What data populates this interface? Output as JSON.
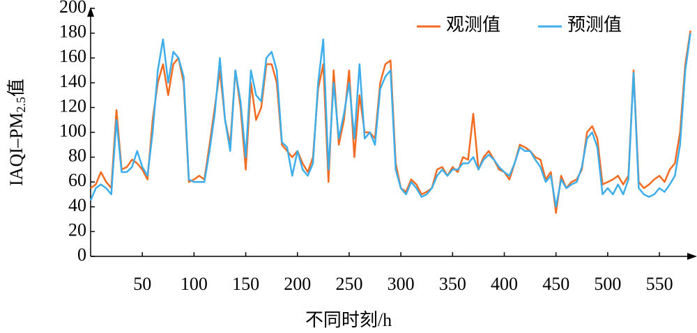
{
  "chart_data": {
    "type": "line",
    "x_label": "不同时刻/h",
    "y_label": {
      "prefix": "IAQI–PM",
      "subscript": "2.5",
      "suffix": "值"
    },
    "x": [
      0,
      5,
      10,
      15,
      20,
      25,
      30,
      35,
      40,
      45,
      50,
      55,
      60,
      65,
      70,
      75,
      80,
      85,
      90,
      95,
      100,
      105,
      110,
      115,
      120,
      125,
      130,
      135,
      140,
      145,
      150,
      155,
      160,
      165,
      170,
      175,
      180,
      185,
      190,
      195,
      200,
      205,
      210,
      215,
      220,
      225,
      230,
      235,
      240,
      245,
      250,
      255,
      260,
      265,
      270,
      275,
      280,
      285,
      290,
      295,
      300,
      305,
      310,
      315,
      320,
      325,
      330,
      335,
      340,
      345,
      350,
      355,
      360,
      365,
      370,
      375,
      380,
      385,
      390,
      395,
      400,
      405,
      410,
      415,
      420,
      425,
      430,
      435,
      440,
      445,
      450,
      455,
      460,
      465,
      470,
      475,
      480,
      485,
      490,
      495,
      500,
      505,
      510,
      515,
      520,
      525,
      530,
      535,
      540,
      545,
      550,
      555,
      560,
      565,
      570,
      575,
      580
    ],
    "series": [
      {
        "name": "观测值",
        "color": "#f26b21",
        "values": [
          55,
          58,
          68,
          60,
          55,
          118,
          70,
          72,
          78,
          75,
          70,
          62,
          110,
          140,
          155,
          130,
          155,
          160,
          140,
          60,
          62,
          65,
          62,
          90,
          120,
          150,
          110,
          90,
          150,
          120,
          70,
          140,
          110,
          120,
          155,
          155,
          140,
          90,
          85,
          80,
          85,
          75,
          68,
          80,
          135,
          155,
          60,
          150,
          90,
          110,
          150,
          80,
          130,
          100,
          100,
          95,
          140,
          155,
          158,
          75,
          55,
          52,
          62,
          58,
          50,
          52,
          55,
          70,
          72,
          65,
          72,
          68,
          80,
          78,
          115,
          70,
          80,
          85,
          78,
          70,
          68,
          62,
          75,
          90,
          88,
          85,
          80,
          78,
          62,
          68,
          35,
          65,
          55,
          60,
          62,
          70,
          100,
          105,
          95,
          58,
          60,
          62,
          65,
          58,
          65,
          150,
          60,
          55,
          58,
          62,
          65,
          60,
          70,
          75,
          100,
          155,
          182
        ]
      },
      {
        "name": "预测值",
        "color": "#3daee9",
        "values": [
          45,
          55,
          58,
          55,
          50,
          110,
          68,
          68,
          72,
          85,
          72,
          65,
          100,
          150,
          175,
          140,
          165,
          160,
          145,
          62,
          60,
          60,
          60,
          85,
          115,
          160,
          110,
          85,
          150,
          125,
          80,
          150,
          130,
          125,
          160,
          165,
          150,
          92,
          88,
          65,
          85,
          70,
          65,
          75,
          140,
          175,
          70,
          140,
          95,
          115,
          140,
          95,
          155,
          95,
          100,
          90,
          135,
          145,
          150,
          70,
          55,
          50,
          60,
          55,
          48,
          50,
          55,
          65,
          70,
          65,
          70,
          70,
          75,
          75,
          80,
          70,
          78,
          82,
          78,
          72,
          68,
          65,
          75,
          88,
          85,
          85,
          78,
          72,
          60,
          65,
          40,
          62,
          55,
          58,
          60,
          72,
          95,
          100,
          88,
          50,
          55,
          50,
          58,
          50,
          62,
          148,
          55,
          50,
          48,
          50,
          55,
          52,
          58,
          65,
          90,
          150,
          180
        ]
      }
    ],
    "xlim": [
      0,
      585
    ],
    "ylim": [
      0,
      200
    ],
    "xticks": [
      50,
      100,
      150,
      200,
      250,
      300,
      350,
      400,
      450,
      500,
      550
    ],
    "yticks": [
      0,
      20,
      40,
      60,
      80,
      100,
      120,
      140,
      160,
      180,
      200
    ],
    "legend": "upper right"
  }
}
